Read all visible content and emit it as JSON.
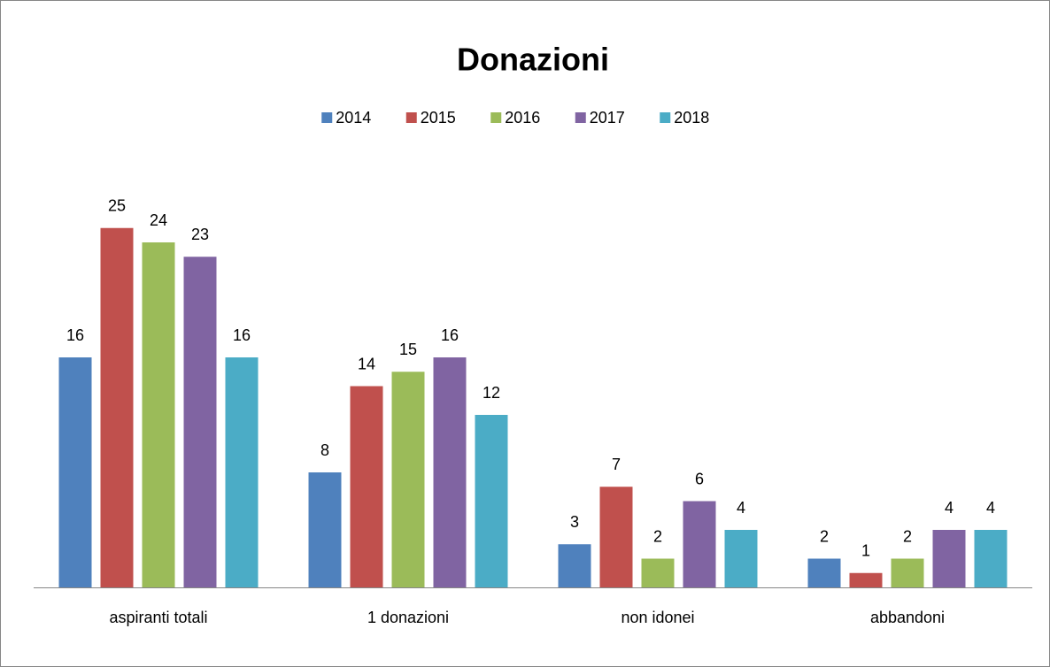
{
  "chart_data": {
    "type": "bar",
    "title": "Donazioni",
    "categories": [
      "aspiranti totali",
      "1 donazioni",
      "non idonei",
      "abbandoni"
    ],
    "series": [
      {
        "name": "2014",
        "color": "#4f81bd",
        "values": [
          16,
          8,
          3,
          2
        ]
      },
      {
        "name": "2015",
        "color": "#c0504d",
        "values": [
          25,
          14,
          7,
          1
        ]
      },
      {
        "name": "2016",
        "color": "#9bbb59",
        "values": [
          24,
          15,
          2,
          2
        ]
      },
      {
        "name": "2017",
        "color": "#8064a2",
        "values": [
          23,
          16,
          6,
          4
        ]
      },
      {
        "name": "2018",
        "color": "#4bacc6",
        "values": [
          16,
          12,
          4,
          4
        ]
      }
    ],
    "ylim": [
      0,
      30
    ],
    "legend": "top"
  }
}
